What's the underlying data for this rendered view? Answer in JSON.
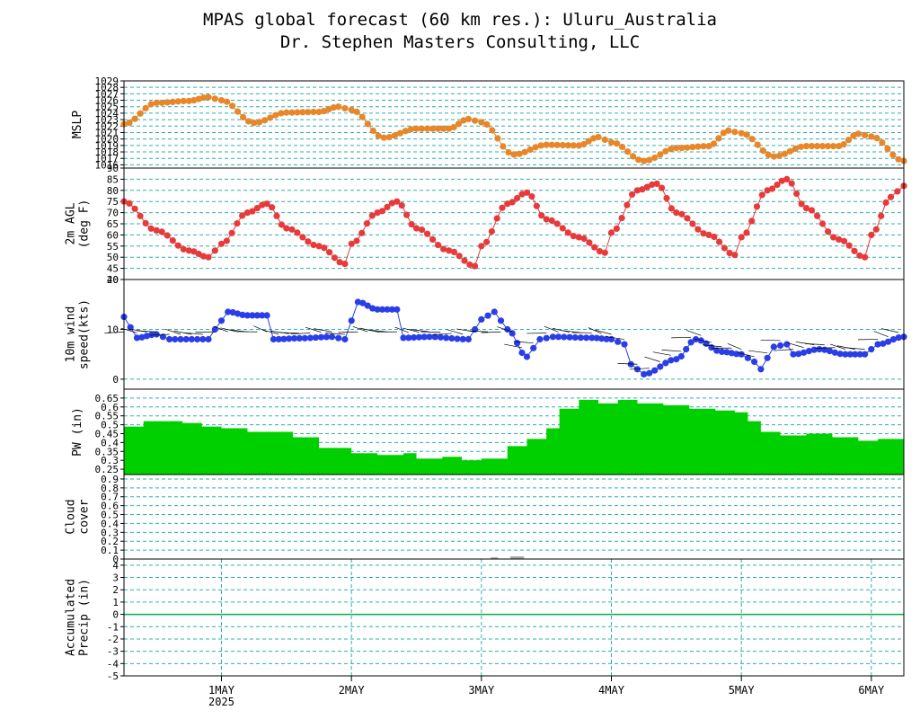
{
  "header": {
    "title": "MPAS global forecast (60 km res.): Uluru_Australia",
    "subtitle": "Dr. Stephen Masters Consulting, LLC"
  },
  "colors": {
    "mslp": "#e8862a",
    "temp": "#e83a3a",
    "wind": "#2a3ee8",
    "pw": "#00d000",
    "cloud": "#a8a8a8",
    "grid": "#2ab0b0",
    "zero_line": "#00b050"
  },
  "chart_data": [
    {
      "id": "mslp",
      "type": "line",
      "ylabel": [
        "MSLP"
      ],
      "ylim": [
        1015.5,
        1029
      ],
      "yticks": [
        1016,
        1017,
        1018,
        1019,
        1020,
        1021,
        1022,
        1023,
        1024,
        1025,
        1026,
        1027,
        1028,
        1029
      ],
      "xlim": [
        0.25,
        6.25
      ],
      "points": [
        [
          0.25,
          1022.3
        ],
        [
          0.5,
          1025.6
        ],
        [
          0.75,
          1025.9
        ],
        [
          0.9,
          1026.5
        ],
        [
          1.0,
          1026.0
        ],
        [
          1.25,
          1022.5
        ],
        [
          1.5,
          1024.1
        ],
        [
          1.75,
          1024.2
        ],
        [
          1.9,
          1025.0
        ],
        [
          2.0,
          1024.5
        ],
        [
          2.25,
          1020.2
        ],
        [
          2.5,
          1021.6
        ],
        [
          2.75,
          1021.6
        ],
        [
          2.9,
          1023.1
        ],
        [
          3.0,
          1022.6
        ],
        [
          3.25,
          1017.6
        ],
        [
          3.5,
          1019.1
        ],
        [
          3.75,
          1019.0
        ],
        [
          3.9,
          1020.3
        ],
        [
          4.0,
          1019.5
        ],
        [
          4.25,
          1016.6
        ],
        [
          4.5,
          1018.6
        ],
        [
          4.75,
          1018.9
        ],
        [
          4.9,
          1021.3
        ],
        [
          5.0,
          1020.9
        ],
        [
          5.25,
          1017.3
        ],
        [
          5.5,
          1018.9
        ],
        [
          5.75,
          1018.9
        ],
        [
          5.9,
          1020.8
        ],
        [
          6.0,
          1020.4
        ],
        [
          6.25,
          1016.6
        ]
      ]
    },
    {
      "id": "temp",
      "type": "line",
      "ylabel": [
        "2m AGL",
        "(deg F)"
      ],
      "ylim": [
        40,
        90
      ],
      "yticks": [
        40,
        45,
        50,
        55,
        60,
        65,
        70,
        75,
        80,
        85,
        90
      ],
      "xlim": [
        0.25,
        6.25
      ],
      "points": [
        [
          0.25,
          75
        ],
        [
          0.5,
          62
        ],
        [
          0.75,
          53
        ],
        [
          0.9,
          50
        ],
        [
          1.0,
          56
        ],
        [
          1.2,
          70
        ],
        [
          1.35,
          74
        ],
        [
          1.5,
          63
        ],
        [
          1.75,
          55
        ],
        [
          1.95,
          47
        ],
        [
          2.0,
          56
        ],
        [
          2.2,
          70
        ],
        [
          2.35,
          75
        ],
        [
          2.5,
          63
        ],
        [
          2.75,
          53
        ],
        [
          2.95,
          46
        ],
        [
          3.0,
          55
        ],
        [
          3.2,
          74
        ],
        [
          3.35,
          79
        ],
        [
          3.5,
          67
        ],
        [
          3.75,
          59
        ],
        [
          3.95,
          52
        ],
        [
          4.0,
          61
        ],
        [
          4.2,
          80
        ],
        [
          4.35,
          83
        ],
        [
          4.5,
          70
        ],
        [
          4.75,
          60
        ],
        [
          4.95,
          51
        ],
        [
          5.0,
          59
        ],
        [
          5.2,
          80
        ],
        [
          5.35,
          85
        ],
        [
          5.5,
          72
        ],
        [
          5.75,
          58
        ],
        [
          5.95,
          50
        ],
        [
          6.0,
          60
        ],
        [
          6.15,
          77
        ],
        [
          6.25,
          82
        ]
      ]
    },
    {
      "id": "wind",
      "type": "line",
      "ylabel": [
        "10m wind",
        "speed(kts)"
      ],
      "ylim": [
        -2,
        20
      ],
      "yticks": [
        0,
        10,
        20
      ],
      "xlim": [
        0.25,
        6.25
      ],
      "points": [
        [
          0.25,
          12.5
        ],
        [
          0.35,
          8.3
        ],
        [
          0.5,
          9
        ],
        [
          0.6,
          8
        ],
        [
          0.9,
          8
        ],
        [
          0.95,
          10
        ],
        [
          1.05,
          13.5
        ],
        [
          1.2,
          12.8
        ],
        [
          1.35,
          12.8
        ],
        [
          1.4,
          8
        ],
        [
          1.6,
          8.2
        ],
        [
          1.85,
          8.5
        ],
        [
          1.95,
          8
        ],
        [
          2.05,
          15.5
        ],
        [
          2.2,
          14
        ],
        [
          2.35,
          14
        ],
        [
          2.4,
          8.3
        ],
        [
          2.6,
          8.5
        ],
        [
          2.9,
          8
        ],
        [
          3.0,
          12
        ],
        [
          3.1,
          13.5
        ],
        [
          3.2,
          10
        ],
        [
          3.35,
          4.5
        ],
        [
          3.45,
          8
        ],
        [
          3.55,
          8.5
        ],
        [
          3.85,
          8.3
        ],
        [
          4.0,
          8
        ],
        [
          4.1,
          7
        ],
        [
          4.15,
          3
        ],
        [
          4.25,
          1
        ],
        [
          4.5,
          4
        ],
        [
          4.65,
          8
        ],
        [
          4.85,
          5.5
        ],
        [
          5.0,
          5
        ],
        [
          5.1,
          3.5
        ],
        [
          5.15,
          2
        ],
        [
          5.25,
          6.5
        ],
        [
          5.35,
          7
        ],
        [
          5.4,
          5
        ],
        [
          5.6,
          6
        ],
        [
          5.8,
          5
        ],
        [
          5.95,
          5
        ],
        [
          6.05,
          7
        ],
        [
          6.25,
          8.5
        ]
      ]
    },
    {
      "id": "pw",
      "type": "area",
      "ylabel": [
        "PW (in)"
      ],
      "ylim": [
        0.22,
        0.7
      ],
      "yticks": [
        0.25,
        0.3,
        0.35,
        0.4,
        0.45,
        0.5,
        0.55,
        0.6,
        0.65
      ],
      "xlim": [
        0.25,
        6.25
      ],
      "points": [
        [
          0.25,
          0.49
        ],
        [
          0.4,
          0.52
        ],
        [
          0.55,
          0.52
        ],
        [
          0.7,
          0.51
        ],
        [
          0.85,
          0.49
        ],
        [
          1.0,
          0.48
        ],
        [
          1.2,
          0.46
        ],
        [
          1.4,
          0.46
        ],
        [
          1.55,
          0.43
        ],
        [
          1.75,
          0.37
        ],
        [
          2.0,
          0.34
        ],
        [
          2.2,
          0.33
        ],
        [
          2.4,
          0.34
        ],
        [
          2.5,
          0.31
        ],
        [
          2.7,
          0.32
        ],
        [
          2.85,
          0.3
        ],
        [
          3.0,
          0.31
        ],
        [
          3.2,
          0.38
        ],
        [
          3.35,
          0.42
        ],
        [
          3.5,
          0.48
        ],
        [
          3.6,
          0.59
        ],
        [
          3.75,
          0.64
        ],
        [
          3.9,
          0.62
        ],
        [
          4.05,
          0.64
        ],
        [
          4.2,
          0.62
        ],
        [
          4.4,
          0.61
        ],
        [
          4.6,
          0.59
        ],
        [
          4.8,
          0.58
        ],
        [
          4.95,
          0.57
        ],
        [
          5.05,
          0.52
        ],
        [
          5.15,
          0.46
        ],
        [
          5.3,
          0.44
        ],
        [
          5.5,
          0.45
        ],
        [
          5.7,
          0.43
        ],
        [
          5.9,
          0.41
        ],
        [
          6.05,
          0.42
        ],
        [
          6.25,
          0.4
        ]
      ]
    },
    {
      "id": "cloud",
      "type": "bar",
      "ylabel": [
        "Cloud",
        "cover"
      ],
      "ylim": [
        0,
        0.95
      ],
      "yticks": [
        0,
        0.1,
        0.2,
        0.3,
        0.4,
        0.5,
        0.6,
        0.7,
        0.8,
        0.9
      ],
      "xlim": [
        0.25,
        6.25
      ],
      "points": [
        [
          3.1,
          0.02
        ],
        [
          3.25,
          0.03
        ],
        [
          3.3,
          0.03
        ]
      ]
    },
    {
      "id": "precip",
      "type": "line",
      "ylabel": [
        "Accumulated",
        "Precip (in)"
      ],
      "ylim": [
        -5,
        4.5
      ],
      "yticks": [
        -5,
        -4,
        -3,
        -2,
        -1,
        0,
        1,
        2,
        3,
        4
      ],
      "xlim": [
        0.25,
        6.25
      ],
      "points": [
        [
          0.25,
          0
        ],
        [
          6.25,
          0
        ]
      ]
    }
  ],
  "x_axis": {
    "date_ticks": [
      1,
      2,
      3,
      4,
      5,
      6
    ],
    "labels": [
      "1MAY",
      "2MAY",
      "3MAY",
      "4MAY",
      "5MAY",
      "6MAY"
    ],
    "year": "2025"
  },
  "wind_barbs": {
    "note_icon": "wind-barb-icon"
  }
}
